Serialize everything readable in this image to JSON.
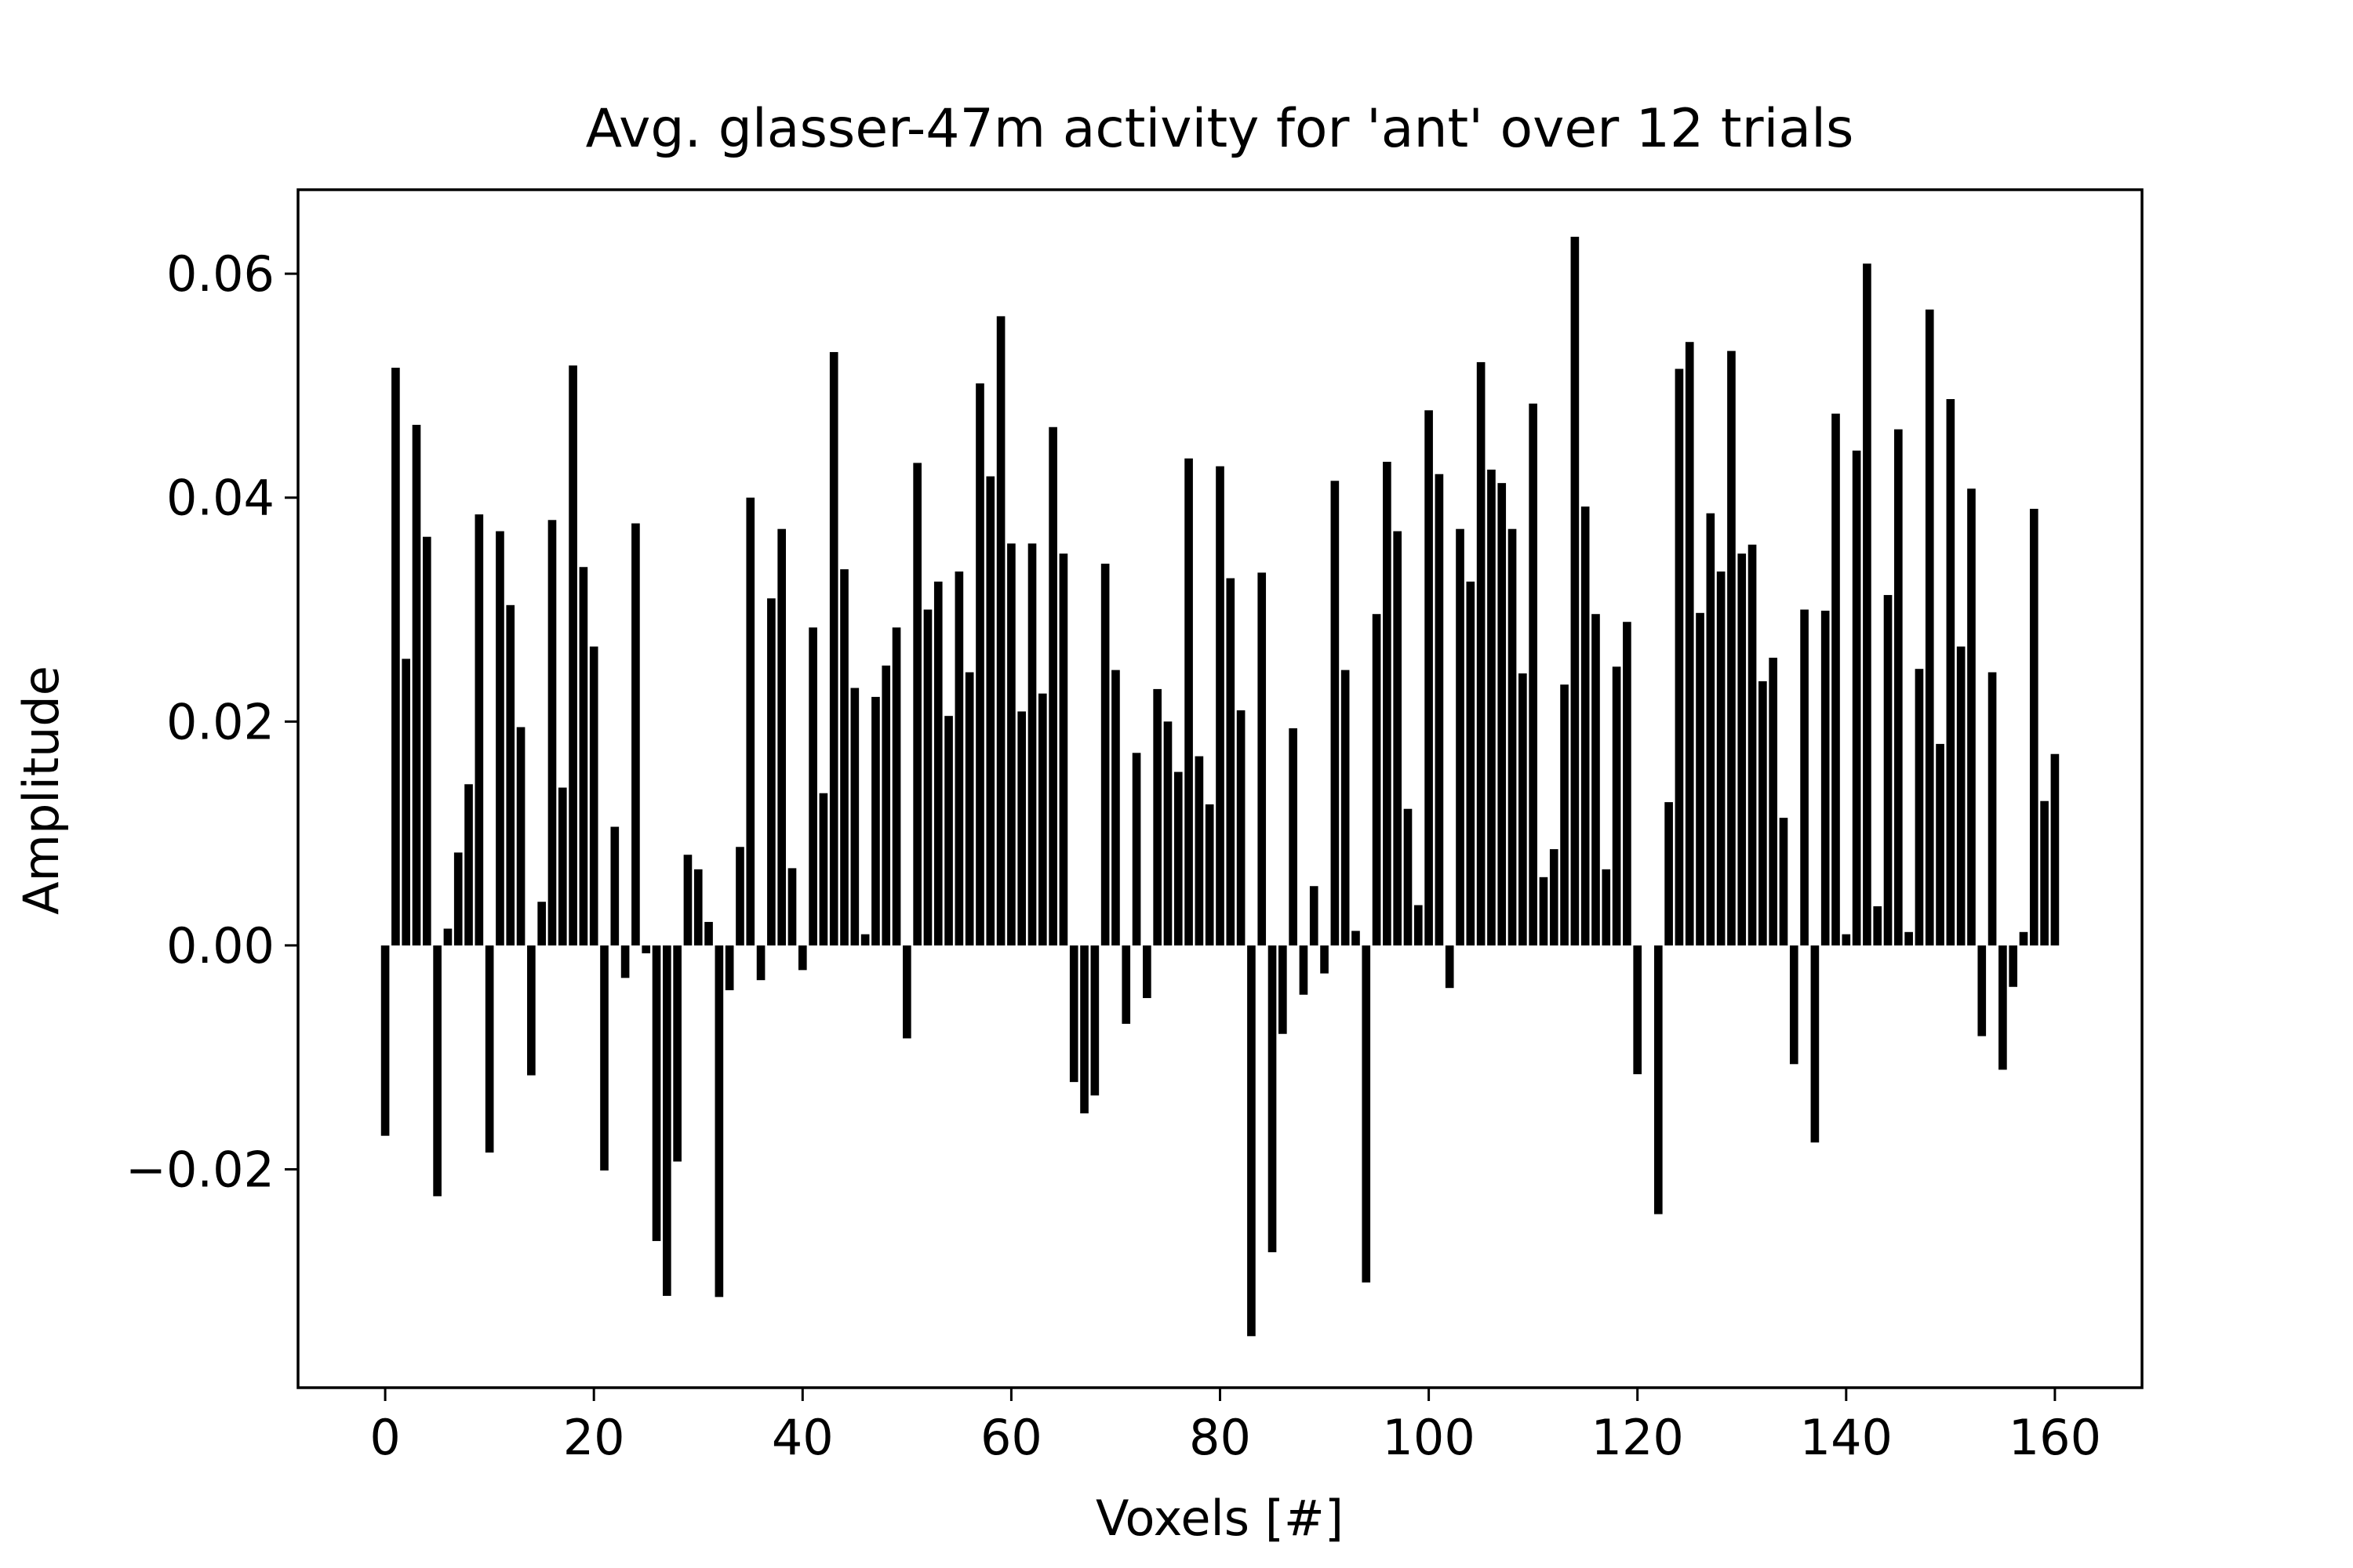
{
  "chart_data": {
    "type": "bar",
    "title": "Avg. glasser-47m activity for 'ant' over 12 trials",
    "xlabel": "Voxels [#]",
    "ylabel": "Amplitude",
    "xlim": [
      -8.35,
      168.35
    ],
    "ylim": [
      -0.0395,
      0.0675
    ],
    "xticks": [
      0,
      20,
      40,
      60,
      80,
      100,
      120,
      140,
      160
    ],
    "xtick_labels": [
      "0",
      "20",
      "40",
      "60",
      "80",
      "100",
      "120",
      "140",
      "160"
    ],
    "yticks": [
      -0.02,
      0.0,
      0.02,
      0.04,
      0.06
    ],
    "ytick_labels": [
      "−0.02",
      "0.00",
      "0.02",
      "0.04",
      "0.06"
    ],
    "bar_color": "#000000",
    "grid": false,
    "legend": "none",
    "x": [
      0,
      1,
      2,
      3,
      4,
      5,
      6,
      7,
      8,
      9,
      10,
      11,
      12,
      13,
      14,
      15,
      16,
      17,
      18,
      19,
      20,
      21,
      22,
      23,
      24,
      25,
      26,
      27,
      28,
      29,
      30,
      31,
      32,
      33,
      34,
      35,
      36,
      37,
      38,
      39,
      40,
      41,
      42,
      43,
      44,
      45,
      46,
      47,
      48,
      49,
      50,
      51,
      52,
      53,
      54,
      55,
      56,
      57,
      58,
      59,
      60,
      61,
      62,
      63,
      64,
      65,
      66,
      67,
      68,
      69,
      70,
      71,
      72,
      73,
      74,
      75,
      76,
      77,
      78,
      79,
      80,
      81,
      82,
      83,
      84,
      85,
      86,
      87,
      88,
      89,
      90,
      91,
      92,
      93,
      94,
      95,
      96,
      97,
      98,
      99,
      100,
      101,
      102,
      103,
      104,
      105,
      106,
      107,
      108,
      109,
      110,
      111,
      112,
      113,
      114,
      115,
      116,
      117,
      118,
      119,
      120,
      121,
      122,
      123,
      124,
      125,
      126,
      127,
      128,
      129,
      130,
      131,
      132,
      133,
      134,
      135,
      136,
      137,
      138,
      139,
      140,
      141,
      142,
      143,
      144,
      145,
      146,
      147,
      148,
      149,
      150,
      151,
      152,
      153,
      154,
      155,
      156,
      157,
      158,
      159,
      160
    ],
    "values": [
      -0.017,
      0.0516,
      0.0256,
      0.0465,
      0.0365,
      -0.0224,
      0.0015,
      0.0083,
      0.0144,
      0.0385,
      -0.0185,
      0.037,
      0.0304,
      0.0195,
      -0.0116,
      0.0039,
      0.038,
      0.0141,
      0.0518,
      0.0338,
      0.0267,
      -0.0201,
      0.0106,
      -0.0029,
      0.0377,
      -0.0007,
      -0.0264,
      -0.0313,
      -0.0193,
      0.0081,
      0.0068,
      0.0021,
      -0.0314,
      -0.004,
      0.0088,
      0.04,
      -0.0031,
      0.031,
      0.0372,
      0.0069,
      -0.0022,
      0.0284,
      0.0136,
      0.053,
      0.0336,
      0.023,
      0.001,
      0.0222,
      0.025,
      0.0284,
      -0.0083,
      0.0431,
      0.03,
      0.0325,
      0.0205,
      0.0334,
      0.0244,
      0.0502,
      0.0419,
      0.0562,
      0.0359,
      0.0209,
      0.0359,
      0.0225,
      0.0463,
      0.035,
      -0.0122,
      -0.015,
      -0.0134,
      0.0341,
      0.0246,
      -0.007,
      0.0172,
      -0.0047,
      0.0229,
      0.02,
      0.0155,
      0.0435,
      0.0169,
      0.0126,
      0.0428,
      0.0328,
      0.021,
      -0.0349,
      0.0333,
      -0.0274,
      -0.0079,
      0.0194,
      -0.0044,
      0.0053,
      -0.0025,
      0.0415,
      0.0246,
      0.0013,
      -0.0301,
      0.0296,
      0.0432,
      0.037,
      0.0122,
      0.0036,
      0.0478,
      0.0421,
      -0.0038,
      0.0372,
      0.0325,
      0.0521,
      0.0425,
      0.0413,
      0.0372,
      0.0243,
      0.0484,
      0.0061,
      0.0086,
      0.0233,
      0.0633,
      0.0392,
      0.0296,
      0.0068,
      0.0249,
      0.0289,
      -0.0115,
      0.0,
      -0.024,
      0.0128,
      0.0515,
      0.0539,
      0.0297,
      0.0386,
      0.0334,
      0.0531,
      0.035,
      0.0358,
      0.0236,
      0.0257,
      0.0114,
      -0.0106,
      0.03,
      -0.0176,
      0.0299,
      0.0475,
      0.001,
      0.0442,
      0.0609,
      0.0035,
      0.0313,
      0.0461,
      0.0012,
      0.0247,
      0.0568,
      0.018,
      0.0488,
      0.0267,
      0.0408,
      -0.0081,
      0.0244,
      -0.0111,
      -0.0037,
      0.0012,
      0.039,
      0.0129,
      0.0171
    ]
  }
}
